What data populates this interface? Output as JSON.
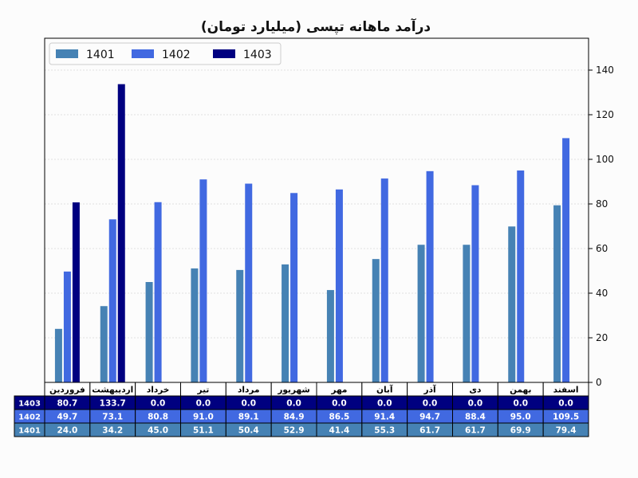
{
  "chart_data": {
    "type": "bar",
    "title": "درآمد ماهانه تپسی (میلیارد تومان)",
    "categories": [
      "فروردین",
      "اردیبهشت",
      "خرداد",
      "تیر",
      "مرداد",
      "شهریور",
      "مهر",
      "آبان",
      "آذر",
      "دی",
      "بهمن",
      "اسفند"
    ],
    "series": [
      {
        "name": "1401",
        "color": "#4682b4",
        "values": [
          24.0,
          34.2,
          45.0,
          51.1,
          50.4,
          52.9,
          41.4,
          55.3,
          61.7,
          61.7,
          69.9,
          79.4
        ]
      },
      {
        "name": "1402",
        "color": "#4169e1",
        "values": [
          49.7,
          73.1,
          80.8,
          91.0,
          89.1,
          84.9,
          86.5,
          91.4,
          94.7,
          88.4,
          95.0,
          109.5
        ]
      },
      {
        "name": "1403",
        "color": "#000080",
        "values": [
          80.7,
          133.7,
          0.0,
          0.0,
          0.0,
          0.0,
          0.0,
          0.0,
          0.0,
          0.0,
          0.0,
          0.0
        ]
      }
    ],
    "ylim": [
      0,
      150
    ],
    "yticks": [
      0,
      20,
      40,
      60,
      80,
      100,
      120,
      140
    ],
    "y_axis_side": "right",
    "grid": true,
    "legend_position": "top-left",
    "table_below": true
  }
}
